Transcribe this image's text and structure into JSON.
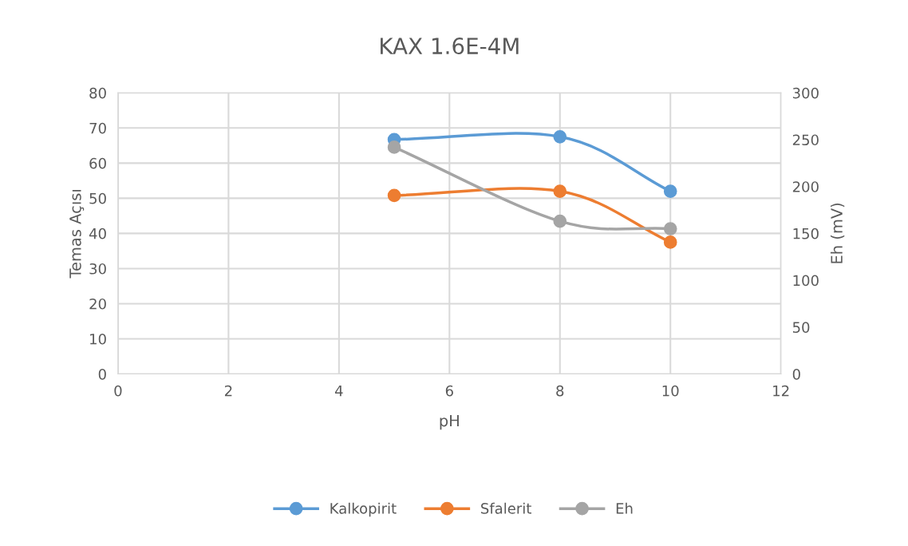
{
  "chart_data": {
    "type": "line",
    "title": "KAX 1.6E-4M",
    "xlabel": "pH",
    "ylabel": "Temas Açısı",
    "y2label": "Eh (mV)",
    "x": [
      5,
      8,
      10
    ],
    "series": [
      {
        "name": "Kalkopirit",
        "color": "#5b9bd5",
        "values": [
          66.7,
          67.5,
          52.0
        ]
      },
      {
        "name": "Sfalerit",
        "color": "#ed7d31",
        "values": [
          50.8,
          52.0,
          37.5
        ]
      },
      {
        "name": "Eh",
        "color": "#a5a5a5",
        "values": [
          242,
          163,
          155
        ],
        "axis": "y2"
      }
    ],
    "xlim": [
      0,
      12
    ],
    "xticks": [
      0,
      2,
      4,
      6,
      8,
      10,
      12
    ],
    "ylim": [
      0,
      80
    ],
    "yticks": [
      0,
      10,
      20,
      30,
      40,
      50,
      60,
      70,
      80
    ],
    "y2lim": [
      0,
      300
    ],
    "y2ticks": [
      0,
      50,
      100,
      150,
      200,
      250,
      300
    ],
    "grid": true,
    "legend": "bottom",
    "marker": "circle",
    "line_style": "solid"
  }
}
